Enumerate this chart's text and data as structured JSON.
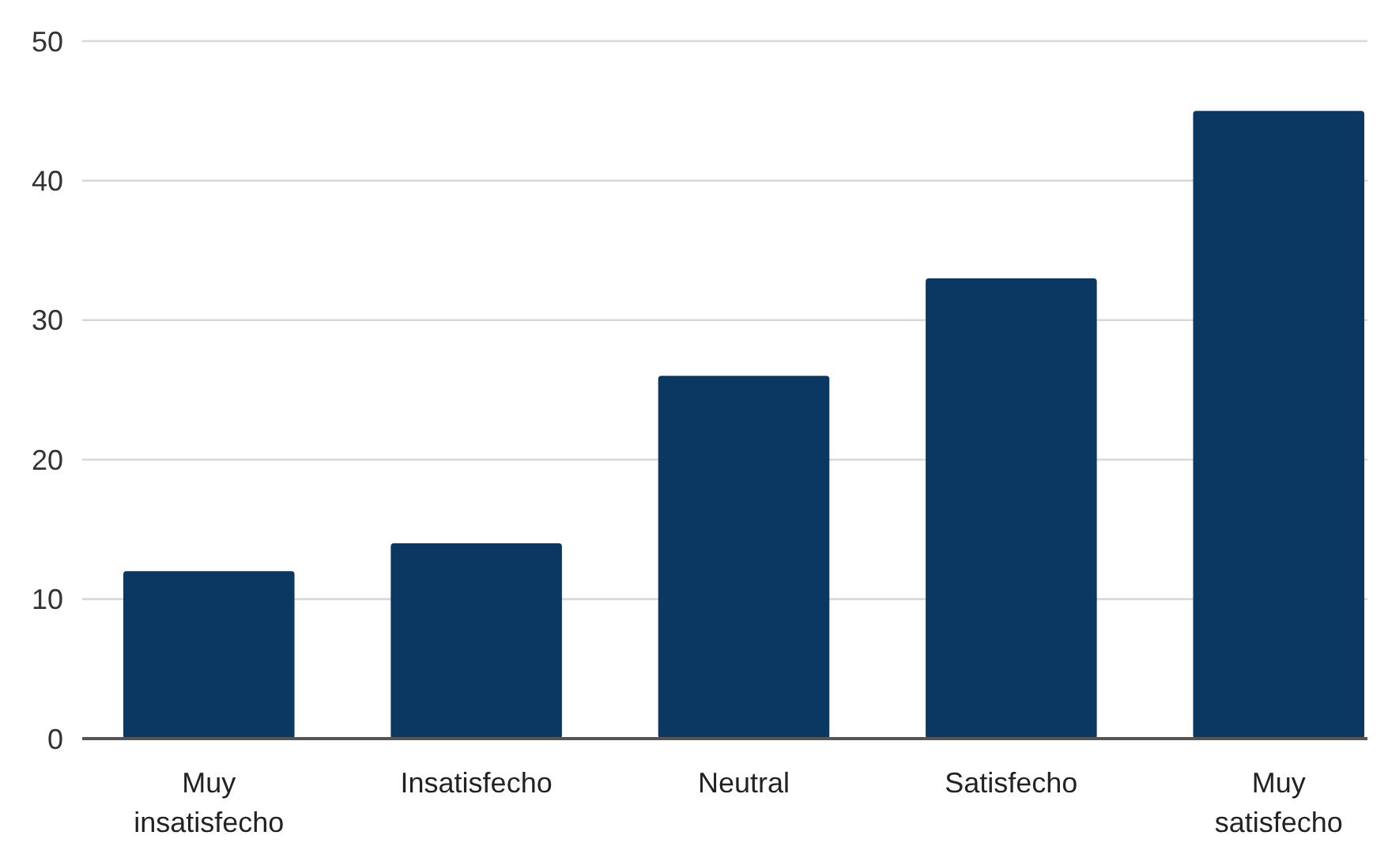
{
  "chart_data": {
    "type": "bar",
    "categories": [
      "Muy insatisfecho",
      "Insatisfecho",
      "Neutral",
      "Satisfecho",
      "Muy satisfecho"
    ],
    "values": [
      12,
      14,
      26,
      33,
      45
    ],
    "color": "#0b3763",
    "ylim": [
      0,
      50
    ],
    "yticks": [
      0,
      10,
      20,
      30,
      40,
      50
    ],
    "grid": "y"
  }
}
